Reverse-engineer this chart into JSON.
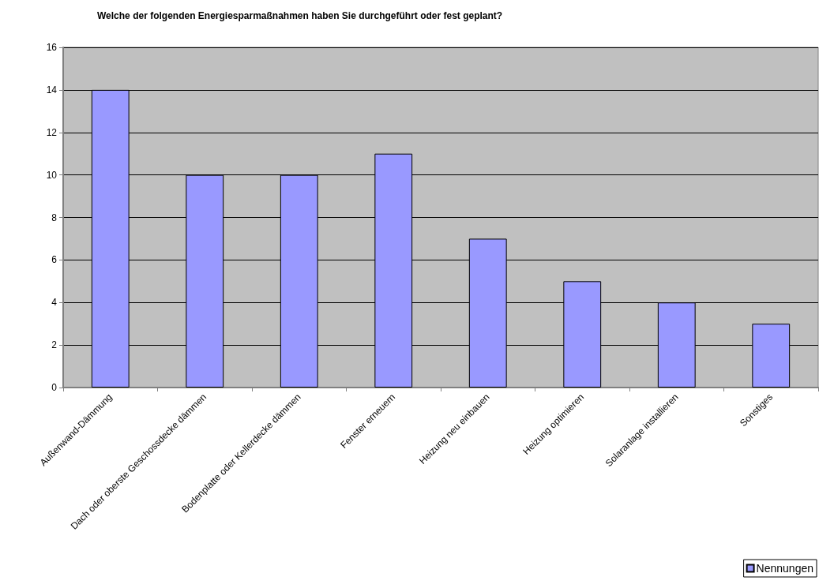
{
  "chart_data": {
    "type": "bar",
    "title": "Welche der folgenden Energiesparmaßnahmen haben Sie durchgeführt oder fest geplant?",
    "categories": [
      "Außenwand-Dämmung",
      "Dach oder oberste Geschossdecke dämmen",
      "Bodenplatte oder Kellerdecke dämmen",
      "Fenster erneuern",
      "Heizung neu einbauen",
      "Heizung optimieren",
      "Solaranlage installieren",
      "Sonstiges"
    ],
    "series": [
      {
        "name": "Nennungen",
        "color": "#9999ff",
        "values": [
          14,
          10,
          10,
          11,
          7,
          5,
          4,
          3
        ]
      }
    ],
    "ylim": [
      0,
      16
    ],
    "yticks": [
      0,
      2,
      4,
      6,
      8,
      10,
      12,
      14,
      16
    ],
    "grid": "y",
    "legend": "bottom right"
  }
}
